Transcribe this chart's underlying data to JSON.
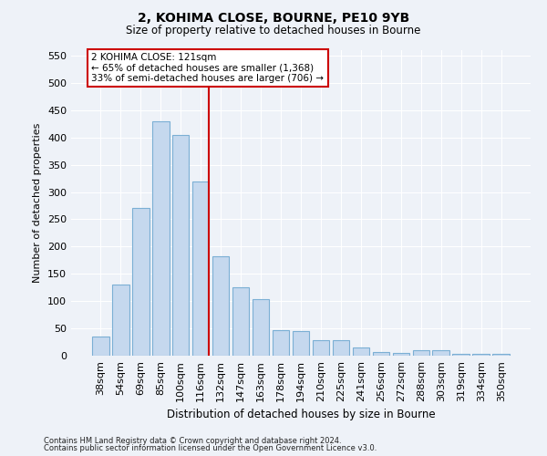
{
  "title1": "2, KOHIMA CLOSE, BOURNE, PE10 9YB",
  "title2": "Size of property relative to detached houses in Bourne",
  "xlabel": "Distribution of detached houses by size in Bourne",
  "ylabel": "Number of detached properties",
  "categories": [
    "38sqm",
    "54sqm",
    "69sqm",
    "85sqm",
    "100sqm",
    "116sqm",
    "132sqm",
    "147sqm",
    "163sqm",
    "178sqm",
    "194sqm",
    "210sqm",
    "225sqm",
    "241sqm",
    "256sqm",
    "272sqm",
    "288sqm",
    "303sqm",
    "319sqm",
    "334sqm",
    "350sqm"
  ],
  "values": [
    35,
    130,
    270,
    430,
    405,
    320,
    183,
    125,
    103,
    46,
    45,
    29,
    28,
    15,
    7,
    5,
    10,
    10,
    4,
    4,
    4
  ],
  "bar_color": "#c5d8ee",
  "bar_edge_color": "#7bafd4",
  "vline_color": "#cc0000",
  "annotation_title": "2 KOHIMA CLOSE: 121sqm",
  "annotation_line1": "← 65% of detached houses are smaller (1,368)",
  "annotation_line2": "33% of semi-detached houses are larger (706) →",
  "annotation_box_color": "#ffffff",
  "annotation_box_edge": "#cc0000",
  "ylim": [
    0,
    560
  ],
  "yticks": [
    0,
    50,
    100,
    150,
    200,
    250,
    300,
    350,
    400,
    450,
    500,
    550
  ],
  "footnote1": "Contains HM Land Registry data © Crown copyright and database right 2024.",
  "footnote2": "Contains public sector information licensed under the Open Government Licence v3.0.",
  "bg_color": "#eef2f8"
}
